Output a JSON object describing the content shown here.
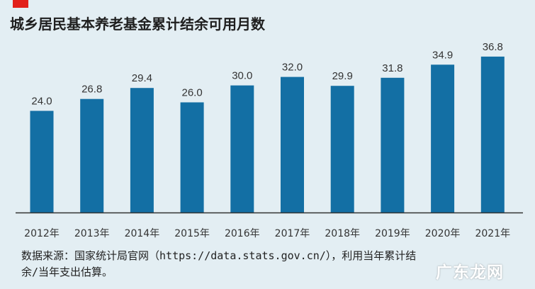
{
  "title": "城乡居民基本养老基金累计结余可用月数",
  "source_note": "数据来源：国家统计局官网（https://data.stats.gov.cn/），利用当年累计结余/当年支出估算。",
  "watermark": "广东龙网",
  "colors": {
    "bar": "#136fa4",
    "accent": "#e2201a",
    "background": "#e3eef3",
    "baseline": "#333333"
  },
  "chart_data": {
    "type": "bar",
    "title": "城乡居民基本养老基金累计结余可用月数",
    "xlabel": "",
    "ylabel": "",
    "categories": [
      "2012年",
      "2013年",
      "2014年",
      "2015年",
      "2016年",
      "2017年",
      "2018年",
      "2019年",
      "2020年",
      "2021年"
    ],
    "values": [
      24.0,
      26.8,
      29.4,
      26.0,
      30.0,
      32.0,
      29.9,
      31.8,
      34.9,
      36.8
    ],
    "value_labels": [
      "24.0",
      "26.8",
      "29.4",
      "26.0",
      "30.0",
      "32.0",
      "29.9",
      "31.8",
      "34.9",
      "36.8"
    ],
    "ylim": [
      0,
      40
    ],
    "grid": false,
    "legend": "none"
  }
}
